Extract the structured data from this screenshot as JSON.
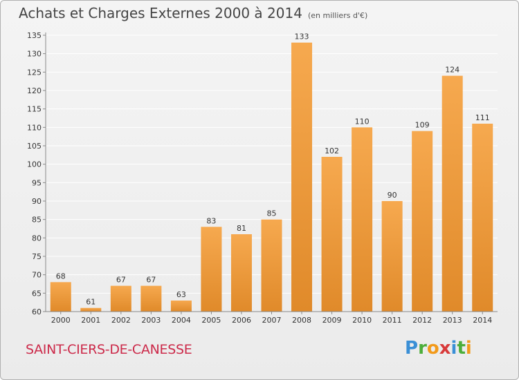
{
  "title": "Achats et Charges Externes 2000 à 2014",
  "subtitle": "(en milliers d'€)",
  "commune": "SAINT-CIERS-DE-CANESSE",
  "logo": {
    "text": "Proxiti",
    "letters": [
      "P",
      "r",
      "o",
      "x",
      "i",
      "t",
      "i"
    ],
    "colors": [
      "#3a8fd6",
      "#4cae3a",
      "#f29a1a",
      "#d83a3a",
      "#3a8fd6",
      "#4cae3a",
      "#f29a1a"
    ]
  },
  "colors": {
    "bar_light": "#f6a94f",
    "bar_dark": "#e08a2a",
    "grid": "#ffffff"
  },
  "chart_data": {
    "type": "bar",
    "categories": [
      "2000",
      "2001",
      "2002",
      "2003",
      "2004",
      "2005",
      "2006",
      "2007",
      "2008",
      "2009",
      "2010",
      "2011",
      "2012",
      "2013",
      "2014"
    ],
    "values": [
      68,
      61,
      67,
      67,
      63,
      83,
      81,
      85,
      133,
      102,
      110,
      90,
      109,
      124,
      111
    ],
    "ylim": [
      60,
      135
    ],
    "yticks": [
      60,
      65,
      70,
      75,
      80,
      85,
      90,
      95,
      100,
      105,
      110,
      115,
      120,
      125,
      130,
      135
    ],
    "grid": true
  }
}
